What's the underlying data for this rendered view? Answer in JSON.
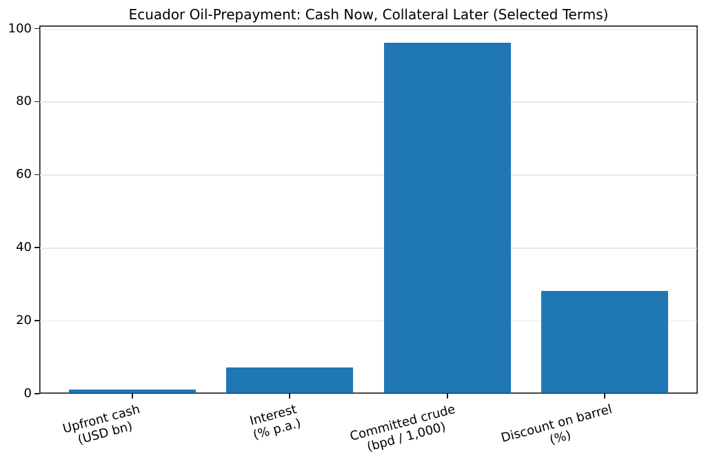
{
  "chart_data": {
    "type": "bar",
    "title": "Ecuador Oil-Prepayment: Cash Now, Collateral Later (Selected Terms)",
    "categories": [
      [
        "Upfront cash",
        "(USD bn)"
      ],
      [
        "Interest",
        "(% p.a.)"
      ],
      [
        "Committed crude",
        "(bpd / 1,000)"
      ],
      [
        "Discount on barrel",
        "(%)"
      ]
    ],
    "values": [
      1,
      7,
      96,
      28
    ],
    "bar_color": "#1f77b4",
    "xlabel": "",
    "ylabel": "",
    "ylim": [
      0,
      100.8
    ],
    "yticks": [
      0,
      20,
      40,
      60,
      80,
      100
    ],
    "grid": "horizontal-light",
    "legend": "none"
  }
}
